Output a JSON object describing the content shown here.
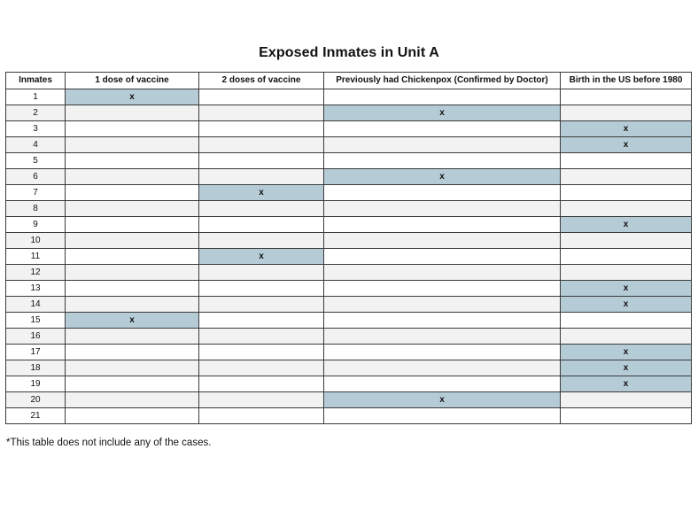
{
  "title": "Exposed Inmates in Unit A",
  "columns": [
    "Inmates",
    "1 dose of vaccine",
    "2 doses of vaccine",
    "Previously had Chickenpox (Confirmed by Doctor)",
    "Birth in the US before 1980"
  ],
  "mark_symbol": "x",
  "mark_color": "#b5ccd7",
  "rows": [
    {
      "inmate": "1",
      "marks": [
        true,
        false,
        false,
        false
      ]
    },
    {
      "inmate": "2",
      "marks": [
        false,
        false,
        true,
        false
      ]
    },
    {
      "inmate": "3",
      "marks": [
        false,
        false,
        false,
        true
      ]
    },
    {
      "inmate": "4",
      "marks": [
        false,
        false,
        false,
        true
      ]
    },
    {
      "inmate": "5",
      "marks": [
        false,
        false,
        false,
        false
      ]
    },
    {
      "inmate": "6",
      "marks": [
        false,
        false,
        true,
        false
      ]
    },
    {
      "inmate": "7",
      "marks": [
        false,
        true,
        false,
        false
      ]
    },
    {
      "inmate": "8",
      "marks": [
        false,
        false,
        false,
        false
      ]
    },
    {
      "inmate": "9",
      "marks": [
        false,
        false,
        false,
        true
      ]
    },
    {
      "inmate": "10",
      "marks": [
        false,
        false,
        false,
        false
      ]
    },
    {
      "inmate": "11",
      "marks": [
        false,
        true,
        false,
        false
      ]
    },
    {
      "inmate": "12",
      "marks": [
        false,
        false,
        false,
        false
      ]
    },
    {
      "inmate": "13",
      "marks": [
        false,
        false,
        false,
        true
      ]
    },
    {
      "inmate": "14",
      "marks": [
        false,
        false,
        false,
        true
      ]
    },
    {
      "inmate": "15",
      "marks": [
        true,
        false,
        false,
        false
      ]
    },
    {
      "inmate": "16",
      "marks": [
        false,
        false,
        false,
        false
      ]
    },
    {
      "inmate": "17",
      "marks": [
        false,
        false,
        false,
        true
      ]
    },
    {
      "inmate": "18",
      "marks": [
        false,
        false,
        false,
        true
      ]
    },
    {
      "inmate": "19",
      "marks": [
        false,
        false,
        false,
        true
      ]
    },
    {
      "inmate": "20",
      "marks": [
        false,
        false,
        true,
        false
      ]
    },
    {
      "inmate": "21",
      "marks": [
        false,
        false,
        false,
        false
      ]
    }
  ],
  "footnote": "*This table does not include any of the cases."
}
